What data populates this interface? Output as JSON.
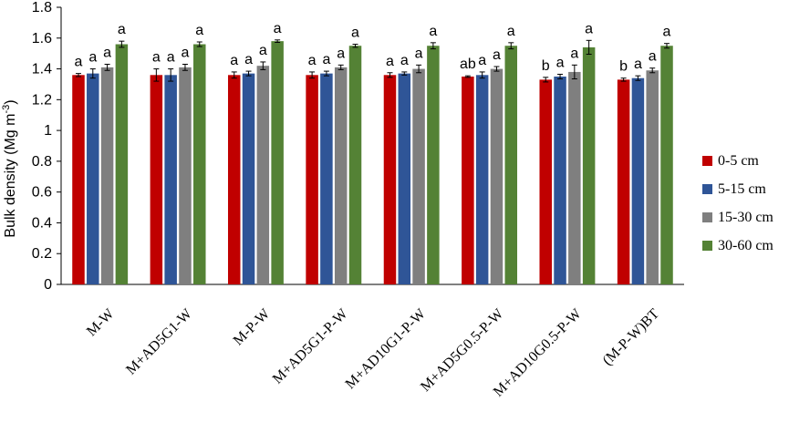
{
  "chart_data": {
    "type": "bar",
    "ylabel": "Bulk density (Mg m",
    "ylabel_sup": "-3",
    "ylabel_end": ")",
    "ylim": [
      0,
      1.8
    ],
    "yticks": [
      "0",
      "0.2",
      "0.4",
      "0.6",
      "0.8",
      "1",
      "1.2",
      "1.4",
      "1.6",
      "1.8"
    ],
    "categories": [
      "M-W",
      "M+AD5G1-W",
      "M-P-W",
      "M+AD5G1-P-W",
      "M+AD10G1-P-W",
      "M+AD5G0.5-P-W",
      "M+AD10G0.5-P-W",
      "(M-P-W)BT"
    ],
    "legend_position": "right",
    "series": [
      {
        "name": "0-5 cm",
        "color": "#c00000",
        "values": [
          1.36,
          1.36,
          1.36,
          1.36,
          1.36,
          1.35,
          1.33,
          1.33
        ],
        "errors": [
          0.01,
          0.04,
          0.02,
          0.02,
          0.015,
          0.005,
          0.015,
          0.01
        ],
        "letters": [
          "a",
          "a",
          "a",
          "a",
          "a",
          "ab",
          "b",
          "b"
        ]
      },
      {
        "name": "5-15 cm",
        "color": "#2f5597",
        "values": [
          1.37,
          1.36,
          1.37,
          1.37,
          1.37,
          1.36,
          1.35,
          1.34
        ],
        "errors": [
          0.03,
          0.04,
          0.015,
          0.015,
          0.01,
          0.02,
          0.015,
          0.015
        ],
        "letters": [
          "a",
          "a",
          "a",
          "a",
          "a",
          "a",
          "a",
          "a"
        ]
      },
      {
        "name": "15-30 cm",
        "color": "#7f7f7f",
        "values": [
          1.41,
          1.41,
          1.42,
          1.41,
          1.4,
          1.4,
          1.38,
          1.39
        ],
        "errors": [
          0.02,
          0.02,
          0.025,
          0.015,
          0.025,
          0.015,
          0.045,
          0.015
        ],
        "letters": [
          "a",
          "a",
          "a",
          "a",
          "a",
          "a",
          "a",
          "a"
        ]
      },
      {
        "name": "30-60 cm",
        "color": "#548235",
        "values": [
          1.56,
          1.56,
          1.58,
          1.55,
          1.55,
          1.55,
          1.54,
          1.55
        ],
        "errors": [
          0.02,
          0.015,
          0.008,
          0.01,
          0.02,
          0.02,
          0.045,
          0.015
        ],
        "letters": [
          "a",
          "a",
          "a",
          "a",
          "a",
          "a",
          "a",
          "a"
        ]
      }
    ]
  }
}
